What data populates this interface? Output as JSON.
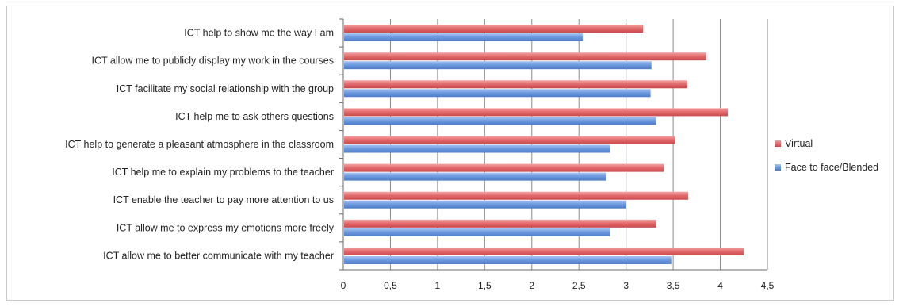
{
  "chart_data": {
    "type": "bar",
    "orientation": "horizontal",
    "categories": [
      "ICT help to show me the way I am",
      "ICT allow me to publicly display my work in the courses",
      "ICT facilitate my social relationship with the group",
      "ICT help me to ask others questions",
      "ICT help to generate a pleasant atmosphere in the classroom",
      "ICT help me to explain my problems to the teacher",
      "ICT enable the teacher to pay more attention to us",
      "ICT allow me to express my emotions more freely",
      "ICT allow me to better communicate with my teacher"
    ],
    "series": [
      {
        "name": "Virtual",
        "color": "#e46c6e",
        "values": [
          3.18,
          3.85,
          3.65,
          4.08,
          3.52,
          3.4,
          3.66,
          3.32,
          4.25
        ]
      },
      {
        "name": "Face to face/Blended",
        "color": "#6f9be0",
        "values": [
          2.54,
          3.27,
          3.26,
          3.32,
          2.83,
          2.79,
          3.0,
          2.83,
          3.48
        ]
      }
    ],
    "xlim": [
      0,
      4.5
    ],
    "xticks": [
      "0",
      "0,5",
      "1",
      "1,5",
      "2",
      "2,5",
      "3",
      "3,5",
      "4",
      "4,5"
    ],
    "grid": "vertical major",
    "legend": "right",
    "title": "",
    "xlabel": "",
    "ylabel": ""
  }
}
